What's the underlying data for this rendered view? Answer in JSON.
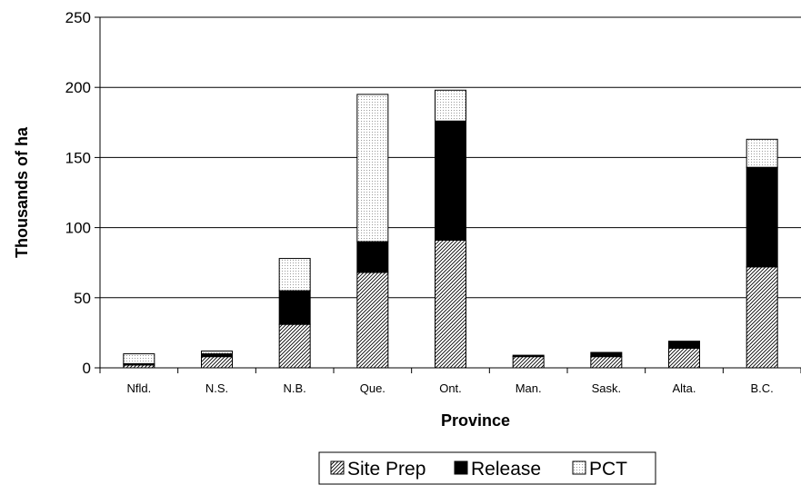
{
  "chart_data": {
    "type": "bar",
    "stacked": true,
    "title": "",
    "xlabel": "Province",
    "ylabel": "Thousands of ha",
    "ylim": [
      0,
      250
    ],
    "yticks": [
      0,
      50,
      100,
      150,
      200,
      250
    ],
    "grid": true,
    "legend_position": "bottom",
    "categories": [
      "Nfld.",
      "N.S.",
      "N.B.",
      "Que.",
      "Ont.",
      "Man.",
      "Sask.",
      "Alta.",
      "B.C."
    ],
    "series": [
      {
        "name": "Site Prep",
        "pattern": "diagonal-hatch",
        "values": [
          2,
          8,
          31,
          68,
          91,
          8,
          8,
          14,
          72
        ]
      },
      {
        "name": "Release",
        "pattern": "solid-black",
        "values": [
          1,
          2,
          24,
          22,
          85,
          1,
          3,
          5,
          71
        ]
      },
      {
        "name": "PCT",
        "pattern": "dotted",
        "values": [
          7,
          2,
          23,
          105,
          22,
          0,
          0,
          0,
          20
        ]
      }
    ]
  }
}
